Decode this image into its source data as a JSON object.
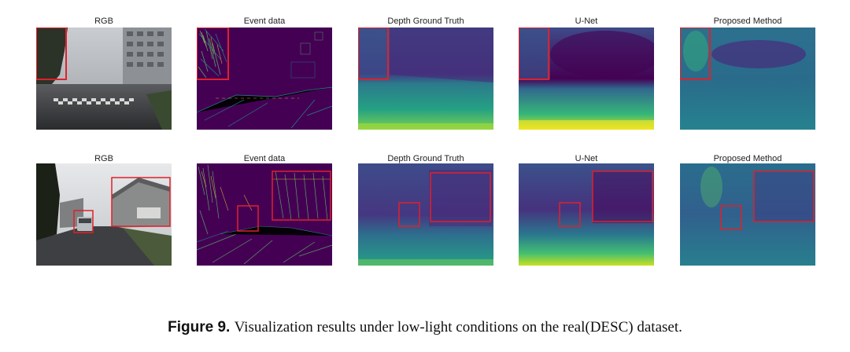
{
  "rows": [
    {
      "labels": [
        "RGB",
        "Event data",
        "Depth Ground Truth",
        "U-Net",
        "Proposed Method"
      ]
    },
    {
      "labels": [
        "RGB",
        "Event data",
        "Depth Ground Truth",
        "U-Net",
        "Proposed Method"
      ]
    }
  ],
  "caption": {
    "figure_label": "Figure 9.",
    "text": "Visualization results under low-light conditions on the real(DESC) dataset."
  },
  "colors": {
    "highlight_box": "#e0202a",
    "viridis_dark": "#440154",
    "viridis_mid": "#3b528b",
    "viridis_teal": "#21918c",
    "viridis_green": "#5ec962",
    "viridis_yellow": "#fde725"
  }
}
